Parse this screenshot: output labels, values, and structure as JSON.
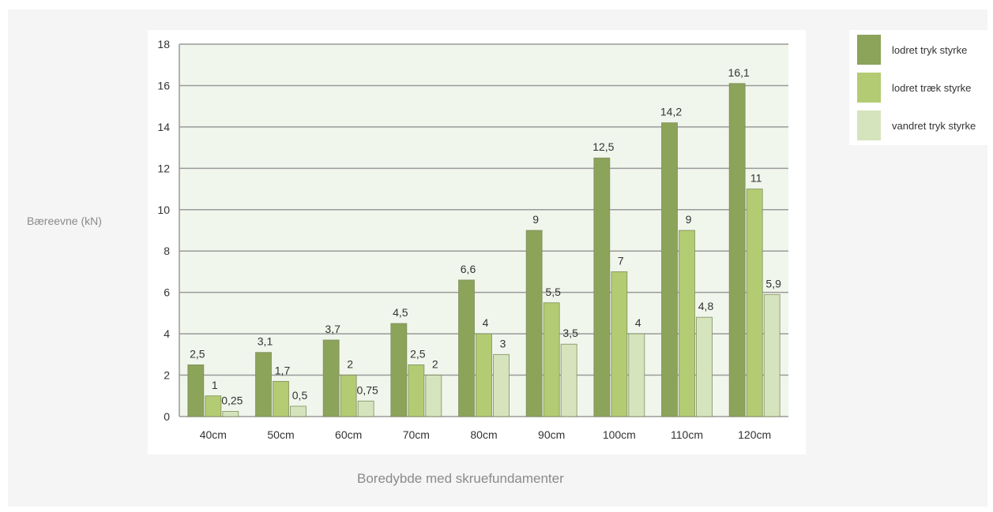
{
  "chart_data": {
    "type": "bar",
    "title": "",
    "xlabel": "Boredybde med skruefundamenter",
    "ylabel": "Bæreevne (kN)",
    "ylim": [
      0,
      18
    ],
    "yticks": [
      0,
      2,
      4,
      6,
      8,
      10,
      12,
      14,
      16,
      18
    ],
    "grid": true,
    "legend_position": "top-right",
    "categories": [
      "40cm",
      "50cm",
      "60cm",
      "70cm",
      "80cm",
      "90cm",
      "100cm",
      "110cm",
      "120cm"
    ],
    "series": [
      {
        "name": "lodret tryk styrke",
        "color": "#8ca35a",
        "values": [
          2.5,
          3.1,
          3.7,
          4.5,
          6.6,
          9,
          12.5,
          14.2,
          16.1
        ],
        "labels": [
          "2,5",
          "3,1",
          "3,7",
          "4,5",
          "6,6",
          "9",
          "12,5",
          "14,2",
          "16,1"
        ]
      },
      {
        "name": "lodret træk styrke",
        "color": "#b3cb72",
        "values": [
          1,
          1.7,
          2,
          2.5,
          4,
          5.5,
          7,
          9,
          11
        ],
        "labels": [
          "1",
          "1,7",
          "2",
          "2,5",
          "4",
          "5,5",
          "7",
          "9",
          "11"
        ]
      },
      {
        "name": "vandret tryk styrke",
        "color": "#d5e4bd",
        "values": [
          0.25,
          0.5,
          0.75,
          2,
          3,
          3.5,
          4,
          4.8,
          5.9
        ],
        "labels": [
          "0,25",
          "0,5",
          "0,75",
          "2",
          "3",
          "3,5",
          "4",
          "4,8",
          "5,9"
        ]
      }
    ]
  }
}
